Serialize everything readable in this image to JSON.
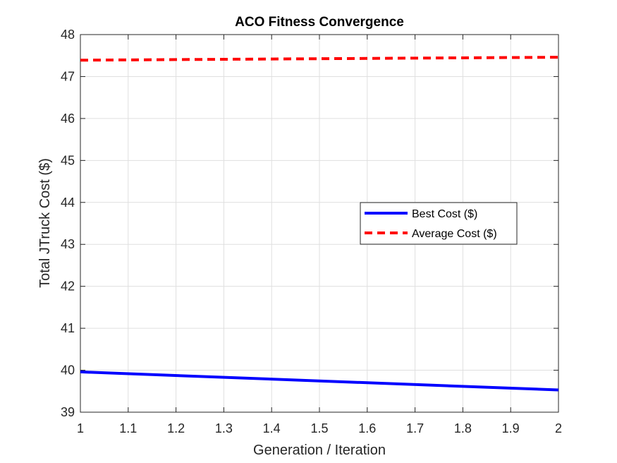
{
  "chart_data": {
    "type": "line",
    "title": "ACO Fitness Convergence",
    "xlabel": "Generation / Iteration",
    "ylabel": "Total JTruck Cost ($)",
    "xlim": [
      1,
      2
    ],
    "ylim": [
      39,
      48
    ],
    "xticks": [
      "1",
      "1.1",
      "1.2",
      "1.3",
      "1.4",
      "1.5",
      "1.6",
      "1.7",
      "1.8",
      "1.9",
      "2"
    ],
    "yticks": [
      "39",
      "40",
      "41",
      "42",
      "43",
      "44",
      "45",
      "46",
      "47",
      "48"
    ],
    "grid": true,
    "legend_position": "right-middle",
    "series": [
      {
        "name": "Best Cost ($)",
        "x": [
          1,
          2
        ],
        "y": [
          39.96,
          39.53
        ],
        "color": "#0000ff",
        "style": "solid"
      },
      {
        "name": "Average Cost ($)",
        "x": [
          1,
          2
        ],
        "y": [
          47.39,
          47.46
        ],
        "color": "#ff0000",
        "style": "dashed"
      }
    ]
  }
}
